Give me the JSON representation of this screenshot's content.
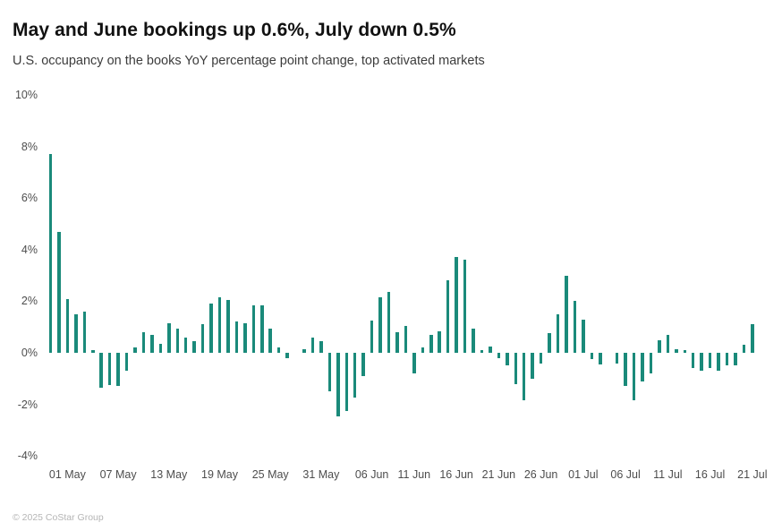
{
  "header": {
    "title": "May and June bookings up 0.6%, July down 0.5%",
    "subtitle": "U.S. occupancy on the books YoY percentage point change, top activated markets"
  },
  "footer": {
    "copyright": "© 2025 CoStar Group"
  },
  "chart_data": {
    "type": "bar",
    "title": "May and June bookings up 0.6%, July down 0.5%",
    "subtitle": "U.S. occupancy on the books YoY percentage point change, top activated markets",
    "xlabel": "",
    "ylabel": "YoY percentage point change",
    "ylim": [
      -4,
      10
    ],
    "grid": false,
    "legend": false,
    "bar_color": "#1a8a7a",
    "y_ticks": [
      10,
      8,
      6,
      4,
      2,
      0,
      -2,
      -4
    ],
    "y_tick_suffix": "%",
    "x": [
      "29 Apr",
      "30 Apr",
      "01 May",
      "02 May",
      "03 May",
      "04 May",
      "05 May",
      "06 May",
      "07 May",
      "08 May",
      "09 May",
      "10 May",
      "11 May",
      "12 May",
      "13 May",
      "14 May",
      "15 May",
      "16 May",
      "17 May",
      "18 May",
      "19 May",
      "20 May",
      "21 May",
      "22 May",
      "23 May",
      "24 May",
      "25 May",
      "26 May",
      "27 May",
      "28 May",
      "29 May",
      "30 May",
      "31 May",
      "01 Jun",
      "02 Jun",
      "03 Jun",
      "04 Jun",
      "05 Jun",
      "06 Jun",
      "07 Jun",
      "08 Jun",
      "09 Jun",
      "10 Jun",
      "11 Jun",
      "12 Jun",
      "13 Jun",
      "14 Jun",
      "15 Jun",
      "16 Jun",
      "17 Jun",
      "18 Jun",
      "19 Jun",
      "20 Jun",
      "21 Jun",
      "22 Jun",
      "23 Jun",
      "24 Jun",
      "25 Jun",
      "26 Jun",
      "27 Jun",
      "28 Jun",
      "29 Jun",
      "30 Jun",
      "01 Jul",
      "02 Jul",
      "03 Jul",
      "04 Jul",
      "05 Jul",
      "06 Jul",
      "07 Jul",
      "08 Jul",
      "09 Jul",
      "10 Jul",
      "11 Jul",
      "12 Jul",
      "13 Jul",
      "14 Jul",
      "15 Jul",
      "16 Jul",
      "17 Jul",
      "18 Jul",
      "19 Jul",
      "20 Jul",
      "21 Jul"
    ],
    "values": [
      7.7,
      4.7,
      2.1,
      1.5,
      1.6,
      0.1,
      -1.35,
      -1.25,
      -1.3,
      -0.7,
      0.2,
      0.8,
      0.7,
      0.35,
      1.15,
      0.95,
      0.6,
      0.45,
      1.1,
      1.9,
      2.15,
      2.05,
      1.2,
      1.15,
      1.85,
      1.85,
      0.95,
      0.2,
      -0.2,
      0,
      0.15,
      0.6,
      0.45,
      -1.5,
      -2.45,
      -2.25,
      -1.75,
      -0.9,
      1.25,
      2.15,
      2.35,
      0.8,
      1.05,
      -0.8,
      0.2,
      0.7,
      0.85,
      2.8,
      3.7,
      3.6,
      0.95,
      0.1,
      0.25,
      -0.2,
      -0.5,
      -1.2,
      -1.85,
      -1.0,
      -0.4,
      0.75,
      1.5,
      3.0,
      2.0,
      1.3,
      -0.25,
      -0.45,
      0,
      -0.4,
      -1.3,
      -1.85,
      -1.1,
      -0.8,
      0.5,
      0.7,
      0.15,
      0.1,
      -0.6,
      -0.7,
      -0.6,
      -0.7,
      -0.5,
      -0.5,
      0.3,
      1.1
    ],
    "x_tick_labels": [
      "01 May",
      "07 May",
      "13 May",
      "19 May",
      "25 May",
      "31 May",
      "06 Jun",
      "11 Jun",
      "16 Jun",
      "21 Jun",
      "26 Jun",
      "01 Jul",
      "06 Jul",
      "11 Jul",
      "16 Jul",
      "21 Jul"
    ],
    "x_tick_indices": [
      2,
      8,
      14,
      20,
      26,
      32,
      38,
      43,
      48,
      53,
      58,
      63,
      68,
      73,
      78,
      83
    ]
  }
}
